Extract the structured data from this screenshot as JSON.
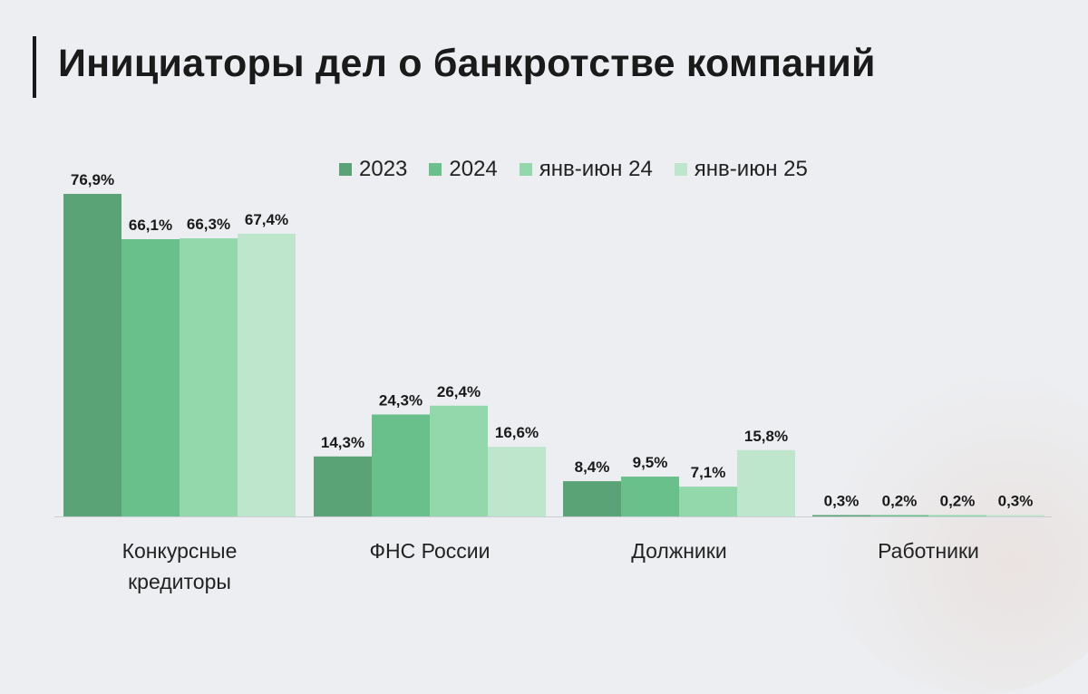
{
  "title": "Инициаторы дел о банкротстве компаний",
  "colors": [
    "#5aa377",
    "#69c08b",
    "#92d8aa",
    "#bde6cc"
  ],
  "chart_data": {
    "type": "bar",
    "categories": [
      [
        "Конкурсные",
        "кредиторы"
      ],
      [
        "ФНС России"
      ],
      [
        "Должники"
      ],
      [
        "Работники"
      ]
    ],
    "series": [
      {
        "name": "2023",
        "values": [
          76.9,
          14.3,
          8.4,
          0.3
        ],
        "labels": [
          "76,9%",
          "14,3%",
          "8,4%",
          "0,3%"
        ]
      },
      {
        "name": "2024",
        "values": [
          66.1,
          24.3,
          9.5,
          0.2
        ],
        "labels": [
          "66,1%",
          "24,3%",
          "9,5%",
          "0,2%"
        ]
      },
      {
        "name": "янв-июн 24",
        "values": [
          66.3,
          26.4,
          7.1,
          0.2
        ],
        "labels": [
          "66,3%",
          "26,4%",
          "7,1%",
          "0,2%"
        ]
      },
      {
        "name": "янв-июн 25",
        "values": [
          67.4,
          16.6,
          15.8,
          0.3
        ],
        "labels": [
          "67,4%",
          "16,6%",
          "15,8%",
          "0,3%"
        ]
      }
    ],
    "ylim": [
      0,
      80
    ],
    "grid": false,
    "legend": "top"
  }
}
